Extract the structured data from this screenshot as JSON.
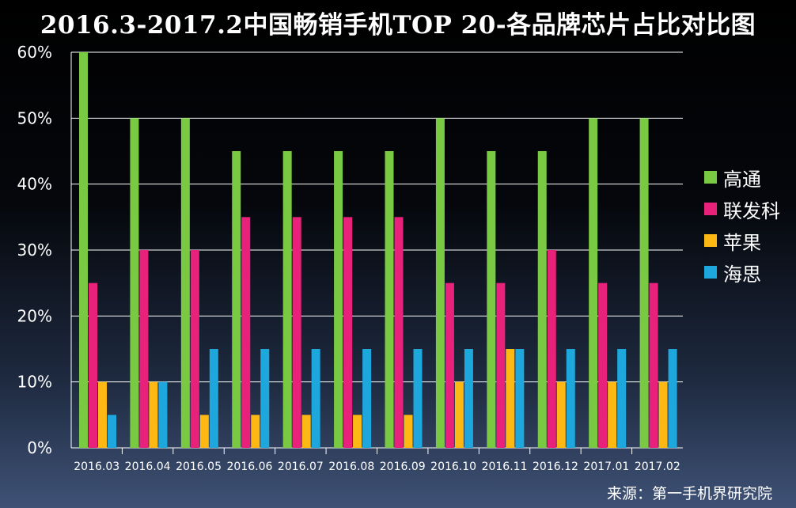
{
  "chart_data": {
    "type": "bar",
    "title": "2016.3-2017.2中国畅销手机TOP 20-各品牌芯片占比对比图",
    "categories": [
      "2016.03",
      "2016.04",
      "2016.05",
      "2016.06",
      "2016.07",
      "2016.08",
      "2016.09",
      "2016.10",
      "2016.11",
      "2016.12",
      "2017.01",
      "2017.02"
    ],
    "series": [
      {
        "name": "高通",
        "color": "#7ac943",
        "values": [
          60,
          50,
          50,
          45,
          45,
          45,
          45,
          50,
          45,
          45,
          50,
          50
        ]
      },
      {
        "name": "联发科",
        "color": "#e8217a",
        "values": [
          25,
          30,
          30,
          35,
          35,
          35,
          35,
          25,
          25,
          30,
          25,
          25
        ]
      },
      {
        "name": "苹果",
        "color": "#fdb813",
        "values": [
          10,
          10,
          5,
          5,
          5,
          5,
          5,
          10,
          15,
          10,
          10,
          10
        ]
      },
      {
        "name": "海思",
        "color": "#1ea7dc",
        "values": [
          5,
          10,
          15,
          15,
          15,
          15,
          15,
          15,
          15,
          15,
          15,
          15
        ]
      }
    ],
    "ylim": [
      0,
      60
    ],
    "yticks": [
      "0%",
      "10%",
      "20%",
      "30%",
      "40%",
      "50%",
      "60%"
    ],
    "xlabel": "",
    "ylabel": "",
    "legend_position": "right",
    "grid": true
  },
  "source": "来源：第一手机界研究院"
}
